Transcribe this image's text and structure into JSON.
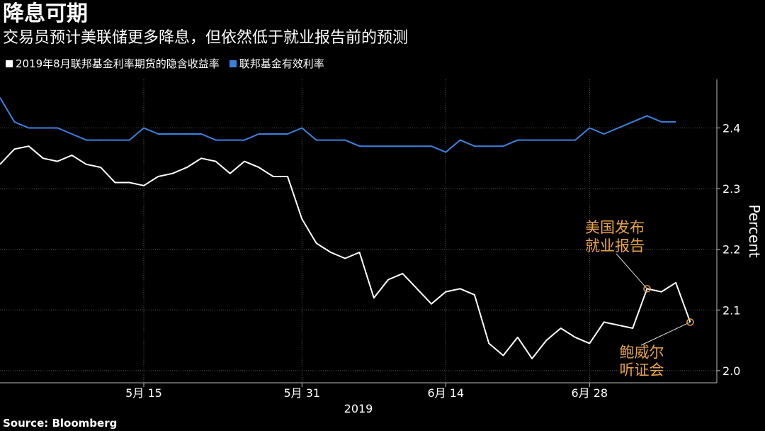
{
  "chart_data": {
    "type": "line",
    "title": "降息可期",
    "subtitle": "交易员预计美联储更多降息，但依然低于就业报告前的预测",
    "ylabel": "Percent",
    "ylim": [
      1.98,
      2.48
    ],
    "yticks": [
      2.0,
      2.1,
      2.2,
      2.3,
      2.4
    ],
    "ytick_labels": [
      "2.0",
      "2.1",
      "2.2",
      "2.3",
      "2.4"
    ],
    "x_ticks": [
      {
        "index": 10,
        "label": "5月 15"
      },
      {
        "index": 21,
        "label": "5月 31"
      },
      {
        "index": 31,
        "label": "6月 14"
      },
      {
        "index": 41,
        "label": "6月 28"
      }
    ],
    "x_year_label": "2019",
    "grid": true,
    "series": [
      {
        "name": "2019年8月联邦基金利率期货的隐含收益率",
        "color": "#ffffff",
        "values": [
          2.34,
          2.365,
          2.37,
          2.35,
          2.345,
          2.355,
          2.34,
          2.335,
          2.31,
          2.31,
          2.305,
          2.32,
          2.325,
          2.335,
          2.35,
          2.345,
          2.325,
          2.345,
          2.335,
          2.32,
          2.32,
          2.25,
          2.21,
          2.195,
          2.185,
          2.195,
          2.12,
          2.15,
          2.16,
          2.135,
          2.11,
          2.13,
          2.135,
          2.125,
          2.045,
          2.025,
          2.055,
          2.02,
          2.05,
          2.07,
          2.055,
          2.045,
          2.08,
          2.075,
          2.07,
          2.135,
          2.13,
          2.145,
          2.08
        ]
      },
      {
        "name": "联邦基金有效利率",
        "color": "#3b82e0",
        "values": [
          2.45,
          2.41,
          2.4,
          2.4,
          2.4,
          2.39,
          2.38,
          2.38,
          2.38,
          2.38,
          2.4,
          2.39,
          2.39,
          2.39,
          2.39,
          2.38,
          2.38,
          2.38,
          2.39,
          2.39,
          2.39,
          2.4,
          2.38,
          2.38,
          2.38,
          2.37,
          2.37,
          2.37,
          2.37,
          2.37,
          2.37,
          2.36,
          2.38,
          2.37,
          2.37,
          2.37,
          2.38,
          2.38,
          2.38,
          2.38,
          2.38,
          2.4,
          2.39,
          2.4,
          2.41,
          2.42,
          2.41,
          2.41
        ]
      }
    ],
    "annotations": [
      {
        "lines": [
          "美国发布",
          "就业报告"
        ],
        "point_index": 45,
        "point_value": 2.135
      },
      {
        "lines": [
          "鲍威尔",
          "听证会"
        ],
        "point_index": 48,
        "point_value": 2.08
      }
    ],
    "annotation_color": "#e8a34a"
  },
  "source": "Source: Bloomberg"
}
